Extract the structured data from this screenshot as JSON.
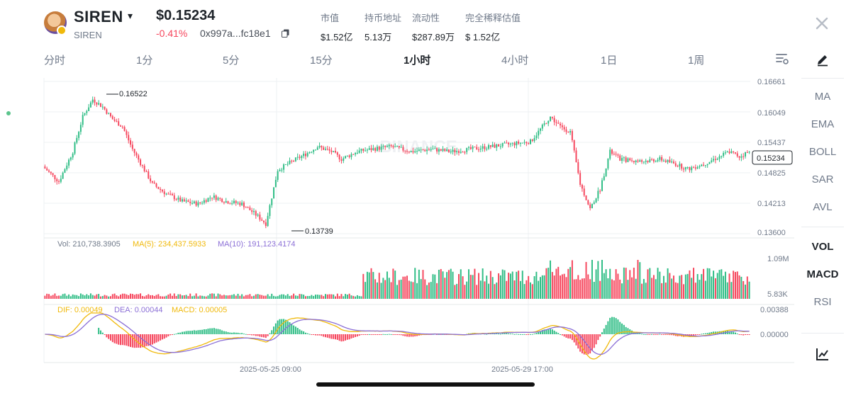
{
  "header": {
    "symbol": "SIREN",
    "name": "SIREN",
    "price": "$0.15234",
    "change": "-0.41%",
    "address": "0x997a...fc18e1",
    "stats": [
      {
        "label": "市值",
        "value": "$1.52亿"
      },
      {
        "label": "持币地址",
        "value": "5.13万"
      },
      {
        "label": "流动性",
        "value": "$287.89万"
      },
      {
        "label": "完全稀释估值",
        "value": "$ 1.52亿"
      }
    ]
  },
  "tabs": [
    {
      "label": "分时",
      "active": false
    },
    {
      "label": "1分",
      "active": false
    },
    {
      "label": "5分",
      "active": false
    },
    {
      "label": "15分",
      "active": false
    },
    {
      "label": "1小时",
      "active": true
    },
    {
      "label": "4小时",
      "active": false
    },
    {
      "label": "1日",
      "active": false
    },
    {
      "label": "1周",
      "active": false
    }
  ],
  "indicators_main": [
    "MA",
    "EMA",
    "BOLL",
    "SAR",
    "AVL"
  ],
  "indicators_sub": [
    {
      "label": "VOL",
      "active": true
    },
    {
      "label": "MACD",
      "active": true
    },
    {
      "label": "RSI",
      "active": false
    }
  ],
  "colors": {
    "up": "#2ebd85",
    "down": "#f6465d",
    "ma5": "#f0b90b",
    "ma10": "#8b6fd6",
    "grid": "#eef0f3",
    "text": "#707a8a"
  },
  "chart_data": {
    "type": "candlestick",
    "price_ticks": [
      "0.16661",
      "0.16049",
      "0.15437",
      "0.14825",
      "0.14213",
      "0.13600"
    ],
    "price_range": [
      0.136,
      0.16661
    ],
    "current_price": "0.15234",
    "high_marker": "0.16522",
    "low_marker": "0.13739",
    "watermark": "BINANCE",
    "volume": {
      "summary": "Vol: 210,738.3905",
      "ma5": "MA(5): 234,437.5933",
      "ma10": "MA(10): 191,123.4174",
      "ticks": [
        "1.09M",
        "5.83K"
      ]
    },
    "macd": {
      "dif": "DIF: 0.00049",
      "dea": "DEA: 0.00044",
      "macd": "MACD: 0.00005",
      "ticks": [
        "0.00388",
        "0.00000"
      ]
    },
    "x_labels": [
      "2025-05-25 09:00",
      "2025-05-29 17:00"
    ],
    "price_path": [
      [
        0,
        0.1495
      ],
      [
        8,
        0.1465
      ],
      [
        15,
        0.1525
      ],
      [
        20,
        0.1595
      ],
      [
        25,
        0.163
      ],
      [
        30,
        0.1615
      ],
      [
        35,
        0.159
      ],
      [
        40,
        0.1575
      ],
      [
        45,
        0.153
      ],
      [
        55,
        0.146
      ],
      [
        62,
        0.144
      ],
      [
        70,
        0.1425
      ],
      [
        78,
        0.142
      ],
      [
        85,
        0.1435
      ],
      [
        92,
        0.1425
      ],
      [
        100,
        0.142
      ],
      [
        108,
        0.1395
      ],
      [
        112,
        0.138
      ],
      [
        118,
        0.1488
      ],
      [
        125,
        0.1505
      ],
      [
        132,
        0.152
      ],
      [
        138,
        0.1535
      ],
      [
        145,
        0.1525
      ],
      [
        150,
        0.151
      ],
      [
        158,
        0.1525
      ],
      [
        165,
        0.153
      ],
      [
        175,
        0.1535
      ],
      [
        185,
        0.1525
      ],
      [
        195,
        0.153
      ],
      [
        205,
        0.1525
      ],
      [
        215,
        0.153
      ],
      [
        225,
        0.1535
      ],
      [
        235,
        0.154
      ],
      [
        245,
        0.1545
      ],
      [
        250,
        0.157
      ],
      [
        255,
        0.1595
      ],
      [
        260,
        0.1575
      ],
      [
        265,
        0.1565
      ],
      [
        270,
        0.146
      ],
      [
        275,
        0.141
      ],
      [
        280,
        0.145
      ],
      [
        285,
        0.1525
      ],
      [
        290,
        0.151
      ],
      [
        300,
        0.1505
      ],
      [
        310,
        0.151
      ],
      [
        318,
        0.15
      ],
      [
        324,
        0.149
      ],
      [
        332,
        0.15
      ],
      [
        340,
        0.1515
      ],
      [
        345,
        0.1525
      ],
      [
        350,
        0.1515
      ],
      [
        354,
        0.1523
      ]
    ]
  }
}
